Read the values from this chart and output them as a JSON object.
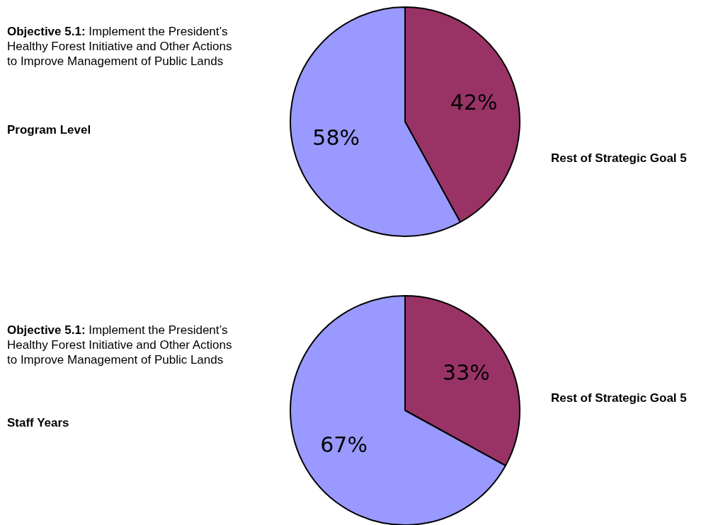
{
  "chart_data": [
    {
      "type": "pie",
      "title": "Program Level",
      "categories": [
        "Rest of Strategic Goal 5",
        "Objective 5.1: Implement the President’s Healthy Forest Initiative and Other Actions to Improve Management of Public Lands"
      ],
      "values": [
        42,
        58
      ],
      "value_labels": [
        "42%",
        "58%"
      ],
      "colors": [
        "#993366",
        "#9999ff"
      ],
      "legend": false
    },
    {
      "type": "pie",
      "title": "Staff Years",
      "categories": [
        "Rest of Strategic Goal 5",
        "Objective 5.1: Implement the President’s Healthy Forest Initiative and Other Actions to Improve Management of Public Lands"
      ],
      "values": [
        33,
        67
      ],
      "value_labels": [
        "33%",
        "67%"
      ],
      "colors": [
        "#993366",
        "#9999ff"
      ],
      "legend": false
    }
  ]
}
